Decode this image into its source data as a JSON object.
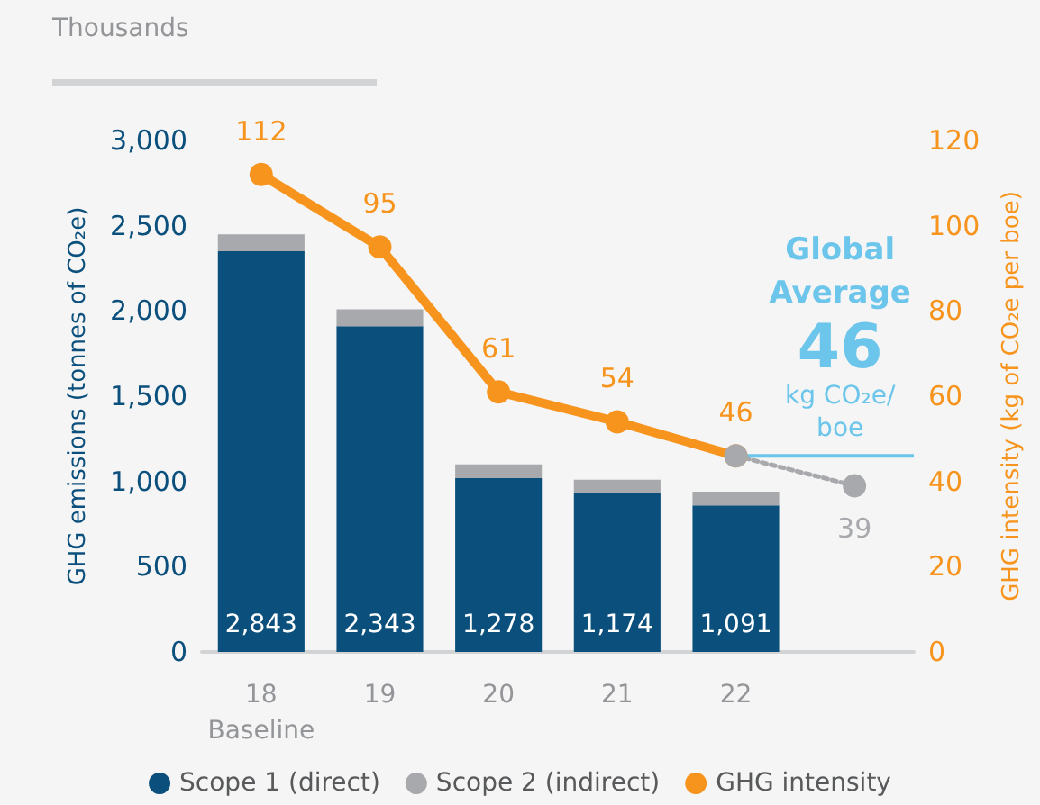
{
  "chart_data": {
    "type": "bar",
    "stacked": true,
    "annotations": [
      "Thousands",
      "2,843",
      "2,343",
      "1,278",
      "1,174",
      "1,091"
    ],
    "ylabel": "GHG emissions (tonnes of CO₂e)",
    "y2label": "GHG intensity (kg of CO₂e per boe)",
    "categories": [
      "18\nBaseline",
      "19",
      "20",
      "21",
      "22",
      null
    ],
    "series": [
      {
        "name": "Scope 1 (direct)",
        "color": "#0b4f7c",
        "values": [
          2350,
          1910,
          1020,
          930,
          860,
          null
        ]
      },
      {
        "name": "Scope 2 (indirect)",
        "color": "#a7a9ac",
        "values": [
          100,
          100,
          80,
          80,
          80,
          null
        ]
      },
      {
        "name": "GHG intensity",
        "type": "line",
        "axis": "y2",
        "color": "#f7941d",
        "values": [
          112,
          95,
          61,
          54,
          46,
          null
        ],
        "data_labels": true
      },
      {
        "type": "line",
        "axis": "y2",
        "color": "#a7a9ac",
        "line_style": "dotted",
        "values": [
          null,
          null,
          null,
          null,
          46,
          39
        ],
        "value_labels": [
          null,
          null,
          null,
          null,
          null,
          "39"
        ]
      }
    ],
    "ylim": [
      0,
      3000
    ],
    "yticks": [
      0,
      500,
      {
        "value": 1000,
        "label": "1,000"
      },
      {
        "value": 1500,
        "label": "1,500"
      },
      {
        "value": 2000,
        "label": "2,000"
      },
      {
        "value": 2500,
        "label": "2,500"
      },
      {
        "value": 3000,
        "label": "3,000"
      }
    ],
    "y2lim": [
      0,
      120
    ],
    "y2ticks": [
      0,
      20,
      40,
      60,
      80,
      100,
      120
    ],
    "ref_lines": [
      {
        "axis": "y2",
        "value": 46,
        "label": "Global\nAverage\n46\nkg CO₂e/\nboe",
        "color": "#6cc5ea"
      }
    ],
    "marker": "circle",
    "grid": false,
    "legend": "bottom"
  }
}
